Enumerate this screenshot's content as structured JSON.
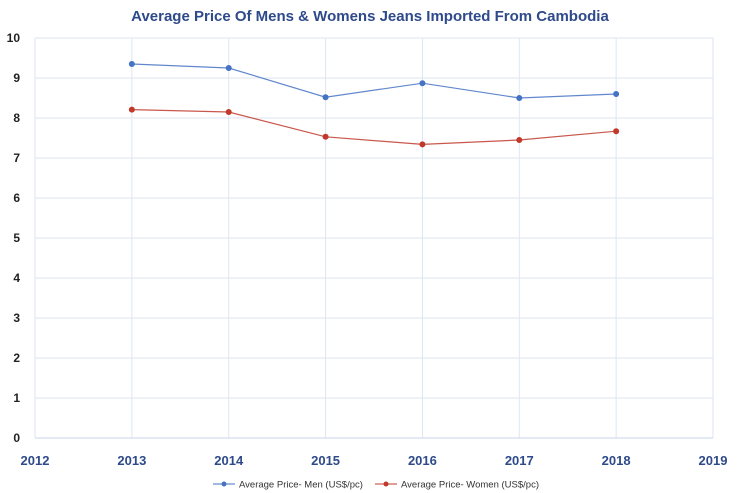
{
  "chart_data": {
    "type": "line",
    "title": "Average Price Of Mens & Womens Jeans Imported From Cambodia",
    "xlabel": "",
    "ylabel": "",
    "xlim": [
      2012,
      2019
    ],
    "ylim": [
      0,
      10
    ],
    "x_ticks": [
      "2012",
      "2013",
      "2014",
      "2015",
      "2016",
      "2017",
      "2018",
      "2019"
    ],
    "y_ticks": [
      "0",
      "1",
      "2",
      "3",
      "4",
      "5",
      "6",
      "7",
      "8",
      "9",
      "10"
    ],
    "grid": true,
    "legend_position": "bottom",
    "x": [
      2013,
      2014,
      2015,
      2016,
      2017,
      2018
    ],
    "series": [
      {
        "name": "Average Price- Men (US$/pc)",
        "color": "#4472c4",
        "values": [
          9.35,
          9.25,
          8.52,
          8.87,
          8.5,
          8.6
        ]
      },
      {
        "name": "Average Price- Women (US$/pc)",
        "color": "#c0392b",
        "values": [
          8.21,
          8.15,
          7.53,
          7.34,
          7.45,
          7.67
        ]
      }
    ]
  }
}
